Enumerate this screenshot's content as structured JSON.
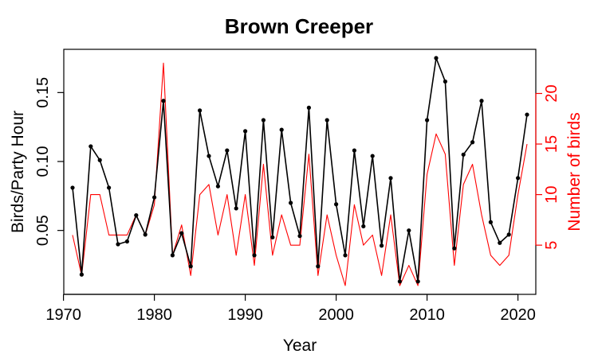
{
  "chart_data": {
    "type": "line",
    "title": "Brown Creeper",
    "xlabel": "Year",
    "ylabel": "Birds/Party Hour",
    "y2label": "Number of birds",
    "xlim": [
      1971,
      2021
    ],
    "ylim": [
      0.01,
      0.175
    ],
    "y2lim": [
      1,
      23.5
    ],
    "x_ticks": [
      1970,
      1980,
      1990,
      2000,
      2010,
      2020
    ],
    "y_ticks": [
      0.05,
      0.1,
      0.15
    ],
    "y_tick_labels": [
      "0.05",
      "0.10",
      "0.15"
    ],
    "y2_ticks": [
      5,
      10,
      15,
      20
    ],
    "grid": false,
    "colors": {
      "left_axis": "#000000",
      "right_axis": "#ff0000",
      "frame": "#000000"
    },
    "series": [
      {
        "axis": "left",
        "color": "#000000",
        "marker": "dot",
        "x": [
          1971,
          1972,
          1973,
          1974,
          1975,
          1976,
          1977,
          1978,
          1979,
          1980,
          1981,
          1982,
          1983,
          1984,
          1985,
          1986,
          1987,
          1988,
          1989,
          1990,
          1991,
          1992,
          1993,
          1994,
          1995,
          1996,
          1997,
          1998,
          1999,
          2000,
          2001,
          2002,
          2003,
          2004,
          2005,
          2006,
          2007,
          2008,
          2009,
          2010,
          2011,
          2012,
          2013,
          2014,
          2015,
          2016,
          2017,
          2018,
          2019,
          2020,
          2021
        ],
        "values": [
          0.081,
          0.018,
          0.111,
          0.101,
          0.081,
          0.04,
          0.042,
          0.061,
          0.047,
          0.074,
          0.144,
          0.032,
          0.048,
          0.024,
          0.137,
          0.104,
          0.082,
          0.108,
          0.066,
          0.122,
          0.032,
          0.13,
          0.045,
          0.123,
          0.07,
          0.046,
          0.139,
          0.024,
          0.13,
          0.069,
          0.032,
          0.108,
          0.053,
          0.104,
          0.039,
          0.088,
          0.013,
          0.05,
          0.013,
          0.13,
          0.175,
          0.158,
          0.037,
          0.105,
          0.114,
          0.144,
          0.056,
          0.041,
          0.047,
          0.088,
          0.134
        ]
      },
      {
        "axis": "right",
        "color": "#ff0000",
        "marker": "none",
        "x": [
          1971,
          1972,
          1973,
          1974,
          1975,
          1976,
          1977,
          1978,
          1979,
          1980,
          1981,
          1982,
          1983,
          1984,
          1985,
          1986,
          1987,
          1988,
          1989,
          1990,
          1991,
          1992,
          1993,
          1994,
          1995,
          1996,
          1997,
          1998,
          1999,
          2000,
          2001,
          2002,
          2003,
          2004,
          2005,
          2006,
          2007,
          2008,
          2009,
          2010,
          2011,
          2012,
          2013,
          2014,
          2015,
          2016,
          2017,
          2018,
          2019,
          2020,
          2021
        ],
        "values": [
          6,
          2,
          10,
          10,
          6,
          6,
          6,
          8,
          6,
          9,
          23,
          4,
          7,
          2,
          10,
          11,
          6,
          10,
          4,
          10,
          3,
          13,
          4,
          8,
          5,
          5,
          14,
          2,
          8,
          4,
          1,
          9,
          5,
          6,
          2,
          8,
          1,
          3,
          1,
          12,
          16,
          14,
          3,
          11,
          13,
          8,
          4,
          3,
          4,
          10,
          15
        ]
      }
    ]
  }
}
